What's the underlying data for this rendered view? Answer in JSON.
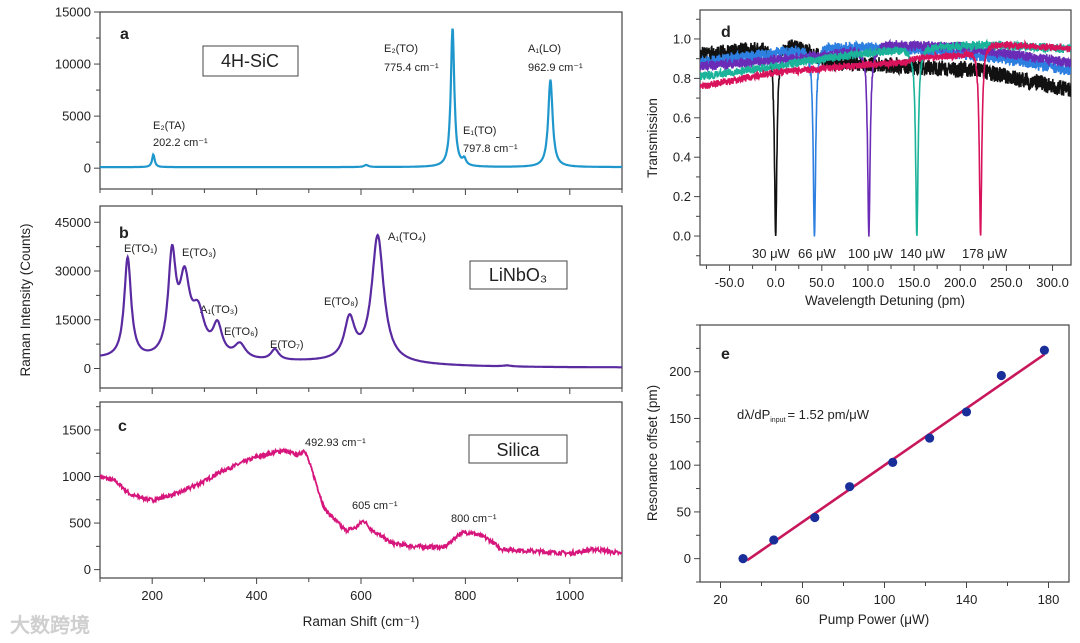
{
  "watermark": "大数跨境",
  "chart_data": [
    {
      "id": "a",
      "type": "line",
      "panel_label": "a",
      "sample_label": "4H-SiC",
      "xlim": [
        100,
        1100
      ],
      "ylim": [
        -2000,
        15000
      ],
      "yticks": [
        0,
        5000,
        10000,
        15000
      ],
      "xticks": [
        200,
        400,
        600,
        800,
        1000
      ],
      "color": "#1f97cc",
      "baseline": 100,
      "peaks": [
        {
          "center": 202.2,
          "height": 1200,
          "width": 3
        },
        {
          "center": 610,
          "height": 200,
          "width": 5
        },
        {
          "center": 775.4,
          "height": 13400,
          "width": 4
        },
        {
          "center": 797.8,
          "height": 600,
          "width": 4
        },
        {
          "center": 962.9,
          "height": 8400,
          "width": 5
        }
      ],
      "annotations": [
        {
          "mode": "E₂(TA)",
          "shift": "202.2 cm⁻¹"
        },
        {
          "mode": "E₂(TO)",
          "shift": "775.4 cm⁻¹"
        },
        {
          "mode": "E₁(TO)",
          "shift": "797.8 cm⁻¹"
        },
        {
          "mode": "A₁(LO)",
          "shift": "962.9 cm⁻¹"
        }
      ]
    },
    {
      "id": "b",
      "type": "line",
      "panel_label": "b",
      "sample_label": "LiNbO₃",
      "xlim": [
        100,
        1100
      ],
      "ylim": [
        -6000,
        50000
      ],
      "yticks": [
        0,
        15000,
        30000,
        45000
      ],
      "xticks": [
        200,
        400,
        600,
        800,
        1000
      ],
      "color": "#5a2aa0",
      "baseline": 300,
      "peaks": [
        {
          "center": 153,
          "height": 31000,
          "width": 8
        },
        {
          "center": 238,
          "height": 30000,
          "width": 9
        },
        {
          "center": 262,
          "height": 22000,
          "width": 12
        },
        {
          "center": 288,
          "height": 13000,
          "width": 15
        },
        {
          "center": 325,
          "height": 9500,
          "width": 11
        },
        {
          "center": 368,
          "height": 4500,
          "width": 13
        },
        {
          "center": 435,
          "height": 3300,
          "width": 9
        },
        {
          "center": 578,
          "height": 12500,
          "width": 12
        },
        {
          "center": 632,
          "height": 39000,
          "width": 14
        },
        {
          "center": 880,
          "height": 300,
          "width": 10
        }
      ],
      "annotations": [
        "E(TO₁)",
        "E(TO₃)",
        "A₁(TO₃)",
        "E(TO₆)",
        "E(TO₇)",
        "E(TO₈)",
        "A₁(TO₄)"
      ]
    },
    {
      "id": "c",
      "type": "line",
      "panel_label": "c",
      "sample_label": "Silica",
      "xlim": [
        100,
        1100
      ],
      "ylim": [
        -90,
        1800
      ],
      "yticks": [
        0,
        500,
        1000,
        1500
      ],
      "xticks": [
        200,
        400,
        600,
        800,
        1000
      ],
      "xlabel": "Raman Shift (cm⁻¹)",
      "ylabel": "Raman Intensity (Counts)",
      "color": "#d6167c",
      "points": [
        [
          100,
          1000
        ],
        [
          130,
          950
        ],
        [
          160,
          800
        ],
        [
          200,
          745
        ],
        [
          250,
          820
        ],
        [
          280,
          900
        ],
        [
          300,
          950
        ],
        [
          330,
          1050
        ],
        [
          360,
          1120
        ],
        [
          400,
          1210
        ],
        [
          450,
          1280
        ],
        [
          480,
          1230
        ],
        [
          492,
          1290
        ],
        [
          510,
          1000
        ],
        [
          530,
          650
        ],
        [
          570,
          420
        ],
        [
          590,
          450
        ],
        [
          605,
          530
        ],
        [
          620,
          430
        ],
        [
          660,
          280
        ],
        [
          700,
          250
        ],
        [
          760,
          240
        ],
        [
          790,
          390
        ],
        [
          810,
          400
        ],
        [
          840,
          340
        ],
        [
          870,
          220
        ],
        [
          950,
          190
        ],
        [
          1000,
          175
        ],
        [
          1050,
          220
        ],
        [
          1100,
          170
        ]
      ],
      "annotations": [
        "492.93 cm⁻¹",
        "605 cm⁻¹",
        "800 cm⁻¹"
      ]
    },
    {
      "id": "d",
      "type": "line",
      "panel_label": "d",
      "xlim": [
        -82,
        320
      ],
      "ylim": [
        -0.147,
        1.147
      ],
      "xticks": [
        -50,
        0,
        50,
        100,
        150,
        200,
        250,
        300
      ],
      "yticks": [
        0.0,
        0.2,
        0.4,
        0.6,
        0.8,
        1.0
      ],
      "xlabel": "Wavelength Detuning (pm)",
      "ylabel": "Transmission",
      "series": [
        {
          "name": "30 μW",
          "color": "#111111",
          "dip_center": 0,
          "noise": 0.05,
          "baseline": [
            [
              -80,
              0.92
            ],
            [
              20,
              0.97
            ],
            [
              60,
              0.88
            ],
            [
              150,
              0.86
            ],
            [
              220,
              0.84
            ],
            [
              320,
              0.74
            ]
          ]
        },
        {
          "name": "66 μW",
          "color": "#2d7fe0",
          "dip_center": 42,
          "noise": 0.035,
          "baseline": [
            [
              -80,
              0.88
            ],
            [
              50,
              0.96
            ],
            [
              150,
              0.95
            ],
            [
              250,
              0.9
            ],
            [
              320,
              0.84
            ]
          ]
        },
        {
          "name": "100 μW",
          "color": "#6a2cb6",
          "dip_center": 101,
          "noise": 0.03,
          "baseline": [
            [
              -80,
              0.86
            ],
            [
              60,
              0.92
            ],
            [
              120,
              0.97
            ],
            [
              200,
              0.96
            ],
            [
              320,
              0.88
            ]
          ]
        },
        {
          "name": "140 μW",
          "color": "#1bb39a",
          "dip_center": 153,
          "noise": 0.025,
          "baseline": [
            [
              -80,
              0.81
            ],
            [
              100,
              0.93
            ],
            [
              160,
              0.96
            ],
            [
              230,
              0.97
            ],
            [
              320,
              0.95
            ]
          ]
        },
        {
          "name": "178 μW",
          "color": "#d8135c",
          "dip_center": 222,
          "noise": 0.02,
          "baseline": [
            [
              -80,
              0.76
            ],
            [
              0,
              0.83
            ],
            [
              100,
              0.87
            ],
            [
              140,
              0.88
            ],
            [
              150,
              0.9
            ],
            [
              200,
              0.92
            ],
            [
              230,
              0.98
            ],
            [
              320,
              0.95
            ]
          ]
        }
      ]
    },
    {
      "id": "e",
      "type": "scatter",
      "panel_label": "e",
      "xlim": [
        10,
        190
      ],
      "ylim": [
        -25,
        250
      ],
      "xticks": [
        20,
        60,
        100,
        140,
        180
      ],
      "yticks": [
        0,
        50,
        100,
        150,
        200
      ],
      "xlabel": "Pump Power  (μW)",
      "ylabel": "Resonance offset (pm)",
      "x": [
        31,
        46,
        66,
        83,
        104,
        122,
        140,
        157,
        178
      ],
      "y": [
        0,
        20,
        44,
        77,
        103,
        129,
        157,
        196,
        223
      ],
      "point_color": "#1a2e9a",
      "fit": {
        "slope": 1.52,
        "intercept": -52,
        "x_range": [
          33,
          178
        ],
        "color": "#c8185c"
      },
      "annotation": {
        "lhs": "dλ/dP",
        "sub": "input",
        "rhs": "= 1.52 pm/μW"
      }
    }
  ]
}
